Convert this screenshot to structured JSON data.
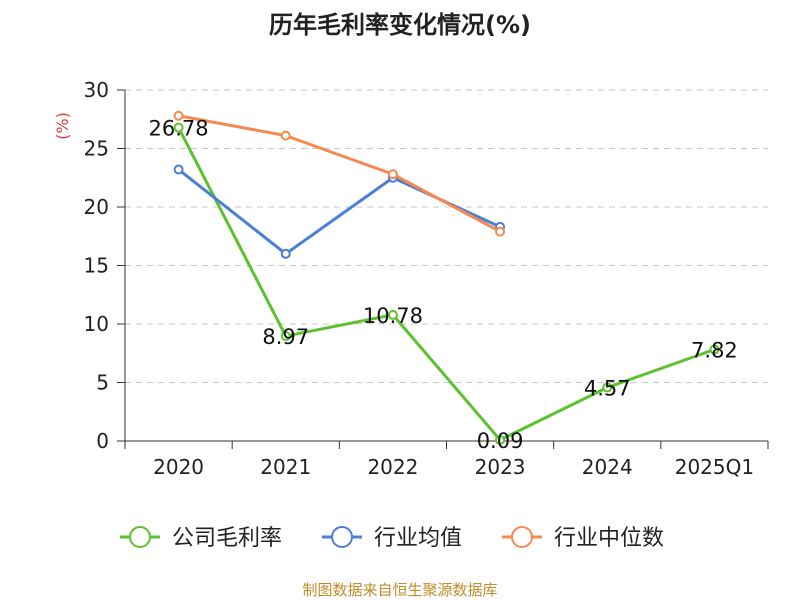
{
  "chart_data": {
    "type": "line",
    "title": "历年毛利率变化情况(%)",
    "ylabel": "(%)",
    "categories": [
      "2020",
      "2021",
      "2022",
      "2023",
      "2024",
      "2025Q1"
    ],
    "ylim": [
      0,
      30
    ],
    "yticks": [
      0,
      5,
      10,
      15,
      20,
      25,
      30
    ],
    "grid": true,
    "legend_position": "bottom",
    "series": [
      {
        "name": "公司毛利率",
        "color": "#5cc12e",
        "values": [
          26.78,
          8.97,
          10.78,
          0.09,
          4.57,
          7.82
        ],
        "labels": [
          "26.78",
          "8.97",
          "10.78",
          "0.09",
          "4.57",
          "7.82"
        ]
      },
      {
        "name": "行业均值",
        "color": "#4a7fd8",
        "values": [
          23.2,
          16.0,
          22.5,
          18.3,
          null,
          null
        ]
      },
      {
        "name": "行业中位数",
        "color": "#f5894f",
        "values": [
          27.8,
          26.1,
          22.8,
          17.9,
          null,
          null
        ]
      }
    ]
  },
  "source": "制图数据来自恒生聚源数据库"
}
